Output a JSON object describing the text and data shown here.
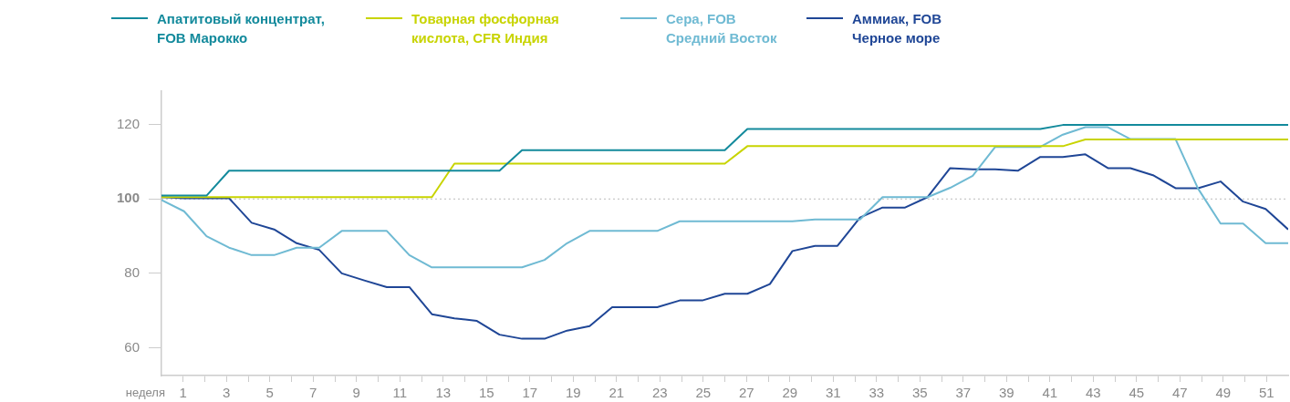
{
  "chart_data": {
    "type": "line",
    "xlabel": "неделя",
    "x": [
      0,
      1.04,
      2.08,
      3.12,
      4.16,
      5.2,
      6.24,
      7.28,
      8.32,
      9.36,
      10.4,
      11.44,
      12.48,
      13.52,
      14.56,
      15.6,
      16.64,
      17.68,
      18.72,
      19.76,
      20.8,
      21.84,
      22.88,
      23.92,
      24.96,
      26,
      27.04,
      28.08,
      29.12,
      30.16,
      31.2,
      32.24,
      33.28,
      34.32,
      35.36,
      36.4,
      37.44,
      38.48,
      39.52,
      40.56,
      41.6,
      42.64,
      43.68,
      44.72,
      45.76,
      46.8,
      47.84,
      48.88,
      49.92,
      50.96,
      52
    ],
    "series": [
      {
        "name": "Апатитовый концентрат, FOB Марокко",
        "color": "#138a9c",
        "values": [
          100.9,
          100.9,
          100.9,
          107.6,
          107.6,
          107.6,
          107.6,
          107.6,
          107.6,
          107.6,
          107.6,
          107.6,
          107.6,
          107.6,
          107.6,
          107.6,
          113.1,
          113.1,
          113.1,
          113.1,
          113.1,
          113.1,
          113.1,
          113.1,
          113.1,
          113.1,
          118.8,
          118.8,
          118.8,
          118.8,
          118.8,
          118.8,
          118.8,
          118.8,
          118.8,
          118.8,
          118.8,
          118.8,
          118.8,
          118.8,
          119.9,
          119.9,
          119.9,
          119.9,
          119.9,
          119.9,
          119.9,
          119.9,
          119.9,
          119.9,
          119.9
        ]
      },
      {
        "name": "Товарная фосфорная кислота, CFR Индия",
        "color": "#c8d400",
        "values": [
          100.5,
          100.5,
          100.5,
          100.5,
          100.5,
          100.5,
          100.5,
          100.5,
          100.5,
          100.5,
          100.5,
          100.5,
          100.5,
          109.5,
          109.5,
          109.5,
          109.5,
          109.5,
          109.5,
          109.5,
          109.5,
          109.5,
          109.5,
          109.5,
          109.5,
          109.5,
          114.2,
          114.2,
          114.2,
          114.2,
          114.2,
          114.2,
          114.2,
          114.2,
          114.2,
          114.2,
          114.2,
          114.2,
          114.2,
          114.2,
          114.2,
          116,
          116,
          116,
          116,
          116,
          116,
          116,
          116,
          116,
          116
        ]
      },
      {
        "name": "Сера, FOB Средний Восток",
        "color": "#6fbad3",
        "values": [
          99.7,
          96.7,
          90,
          86.9,
          84.9,
          84.9,
          86.9,
          86.9,
          91.4,
          91.4,
          91.4,
          84.9,
          81.6,
          81.6,
          81.6,
          81.6,
          81.6,
          83.6,
          88.1,
          91.4,
          91.4,
          91.4,
          91.4,
          94,
          94,
          94,
          94,
          94,
          94,
          94.5,
          94.5,
          94.5,
          100.5,
          100.5,
          100.5,
          103,
          106.2,
          114,
          114,
          114,
          117.3,
          119.3,
          119.3,
          116.1,
          116.1,
          116.1,
          102.8,
          93.4,
          93.4,
          88.1,
          88.1
        ]
      },
      {
        "name": "Аммиак, FOB Черное море",
        "color": "#1f4696",
        "values": [
          100.5,
          100.2,
          100.2,
          100.2,
          93.6,
          91.8,
          88.1,
          86.3,
          80,
          78.1,
          76.3,
          76.3,
          69,
          67.9,
          67.2,
          63.5,
          62.4,
          62.4,
          64.6,
          65.8,
          70.9,
          70.9,
          70.9,
          72.7,
          72.7,
          74.5,
          74.5,
          77.1,
          86,
          87.4,
          87.4,
          95,
          97.7,
          97.7,
          100.5,
          108.3,
          108,
          108,
          107.6,
          111.3,
          111.3,
          112,
          108.3,
          108.3,
          106.4,
          102.9,
          102.9,
          104.7,
          99.3,
          97.3,
          91.8
        ]
      }
    ],
    "xlim": [
      0,
      52
    ],
    "xticks": [
      1,
      {
        "value": 2,
        "label": null
      },
      3,
      {
        "value": 4,
        "label": null
      },
      5,
      {
        "value": 6,
        "label": null
      },
      7,
      {
        "value": 8,
        "label": null
      },
      9,
      {
        "value": 10,
        "label": null
      },
      11,
      {
        "value": 12,
        "label": null
      },
      13,
      {
        "value": 14,
        "label": null
      },
      15,
      {
        "value": 16,
        "label": null
      },
      17,
      {
        "value": 18,
        "label": null
      },
      19,
      {
        "value": 20,
        "label": null
      },
      21,
      {
        "value": 22,
        "label": null
      },
      23,
      {
        "value": 24,
        "label": null
      },
      25,
      {
        "value": 26,
        "label": null
      },
      27,
      {
        "value": 28,
        "label": null
      },
      29,
      {
        "value": 30,
        "label": null
      },
      31,
      {
        "value": 32,
        "label": null
      },
      33,
      {
        "value": 34,
        "label": null
      },
      35,
      {
        "value": 36,
        "label": null
      },
      37,
      {
        "value": 38,
        "label": null
      },
      39,
      {
        "value": 40,
        "label": null
      },
      41,
      {
        "value": 42,
        "label": null
      },
      43,
      {
        "value": 44,
        "label": null
      },
      45,
      {
        "value": 46,
        "label": null
      },
      47,
      {
        "value": 48,
        "label": null
      },
      49,
      {
        "value": 50,
        "label": null
      },
      51
    ],
    "ylim": [
      52.5,
      129
    ],
    "yticks": [
      60,
      80,
      100,
      120
    ],
    "ref_lines": [
      {
        "axis": "y",
        "value": 100,
        "color": "#bbbbbb",
        "line_style": "dotted"
      }
    ],
    "grid": false,
    "legend": "top",
    "marker": "none",
    "line_style": "solid"
  }
}
